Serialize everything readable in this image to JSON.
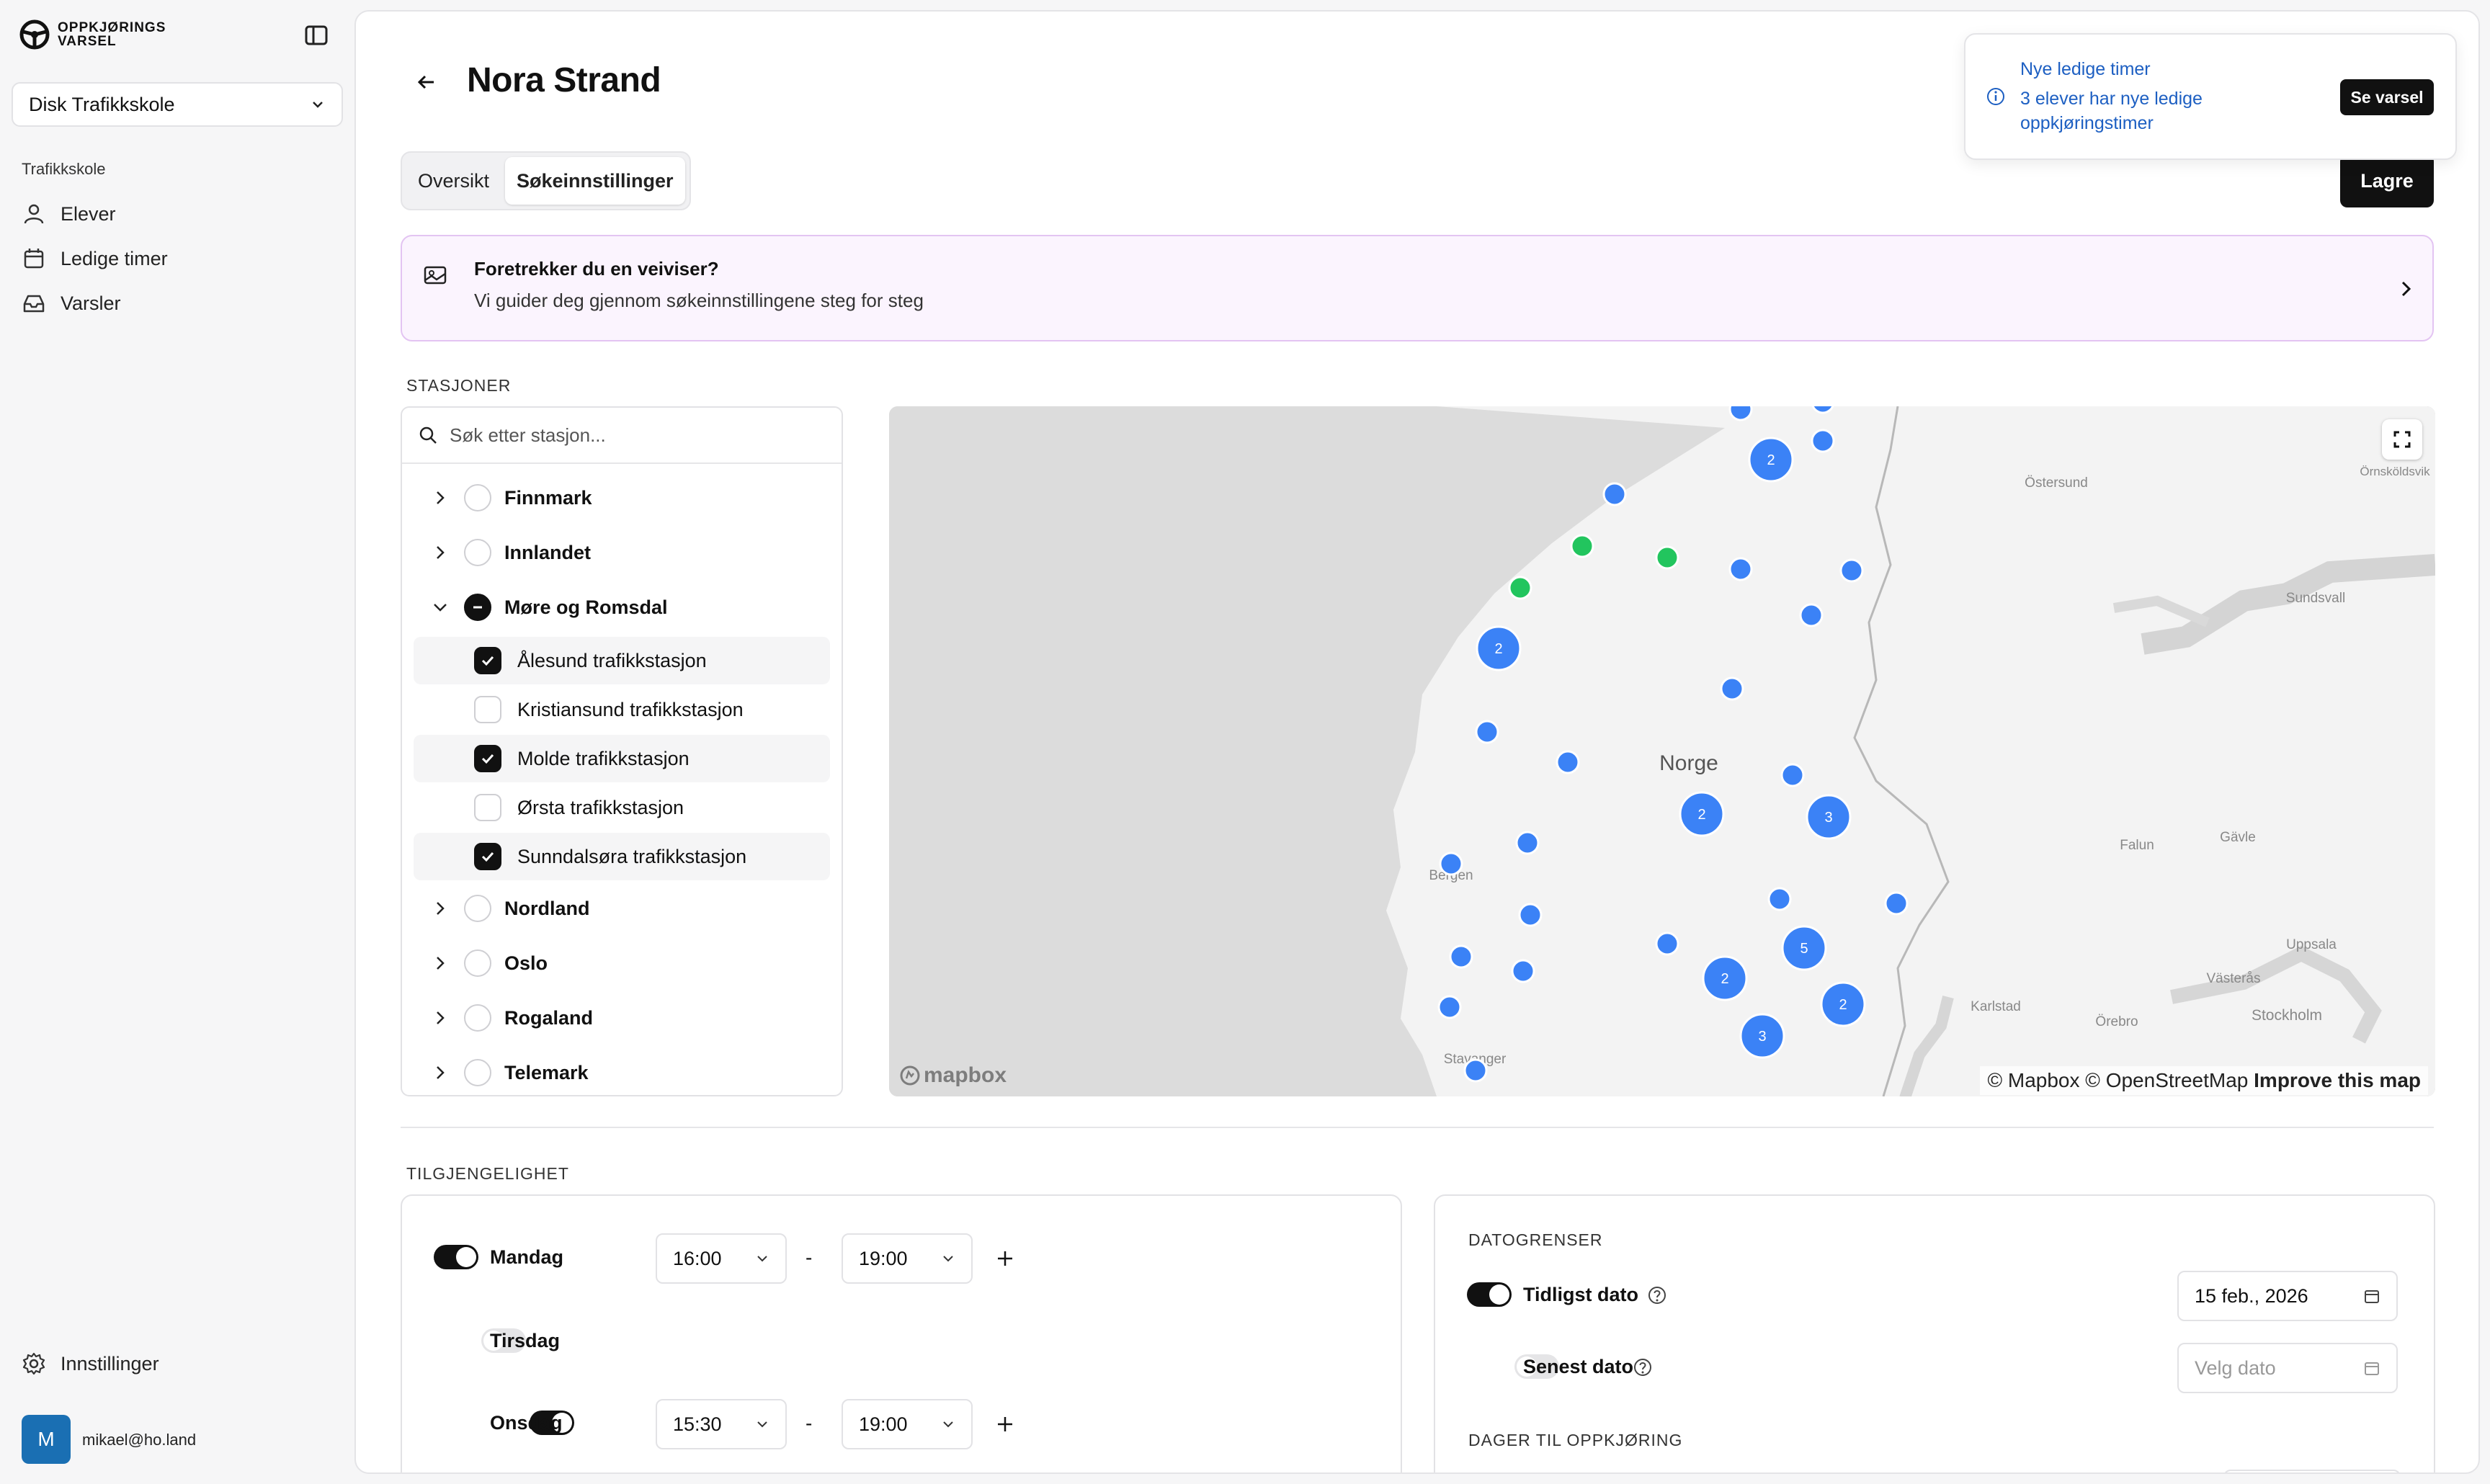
{
  "app": {
    "logo_line1": "OPPKJØRINGS",
    "logo_line2": "VARSEL"
  },
  "sidebar": {
    "school": "Disk Trafikkskole",
    "section": "Trafikkskole",
    "items": [
      {
        "label": "Elever",
        "icon": "user-icon"
      },
      {
        "label": "Ledige timer",
        "icon": "calendar-icon"
      },
      {
        "label": "Varsler",
        "icon": "inbox-icon"
      }
    ],
    "settings": "Innstillinger",
    "user": {
      "initial": "M",
      "email": "mikael@ho.land"
    }
  },
  "header": {
    "title": "Nora Strand",
    "save_label": "Lagre"
  },
  "tabs": [
    {
      "label": "Oversikt",
      "active": false
    },
    {
      "label": "Søkeinnstillinger",
      "active": true
    }
  ],
  "wizard": {
    "title": "Foretrekker du en veiviser?",
    "subtitle": "Vi guider deg gjennom søkeinnstillingene steg for steg"
  },
  "stations": {
    "label": "STASJONER",
    "search_placeholder": "Søk etter stasjon...",
    "regions": [
      {
        "name": "Finnmark",
        "state": "unchecked",
        "expanded": false
      },
      {
        "name": "Innlandet",
        "state": "unchecked",
        "expanded": false
      },
      {
        "name": "Møre og Romsdal",
        "state": "mixed",
        "expanded": true,
        "children": [
          {
            "name": "Ålesund trafikkstasjon",
            "checked": true
          },
          {
            "name": "Kristiansund trafikkstasjon",
            "checked": false
          },
          {
            "name": "Molde trafikkstasjon",
            "checked": true
          },
          {
            "name": "Ørsta trafikkstasjon",
            "checked": false
          },
          {
            "name": "Sunndalsøra trafikkstasjon",
            "checked": true
          }
        ]
      },
      {
        "name": "Nordland",
        "state": "unchecked",
        "expanded": false
      },
      {
        "name": "Oslo",
        "state": "unchecked",
        "expanded": false
      },
      {
        "name": "Rogaland",
        "state": "unchecked",
        "expanded": false
      },
      {
        "name": "Telemark",
        "state": "unchecked",
        "expanded": false
      }
    ]
  },
  "map": {
    "country_label": "Norge",
    "place_labels": [
      "Östersund",
      "Örnsköldsvik",
      "Sundsvall",
      "Falun",
      "Gävle",
      "Uppsala",
      "Västerås",
      "Karlstad",
      "Örebro",
      "Stockholm",
      "Bergen",
      "Stavanger"
    ],
    "attribution": "© Mapbox © OpenStreetMap",
    "improve": "Improve this map",
    "logo": "mapbox",
    "colors": {
      "marker": "#3b82f6",
      "selected": "#22c55e",
      "land": "#f2f2f2",
      "water": "#d9d9d9"
    },
    "cluster_counts": [
      "2",
      "2",
      "2",
      "3",
      "2",
      "5",
      "2",
      "3"
    ]
  },
  "availability": {
    "label": "TILGJENGELIGHET",
    "days": [
      {
        "day": "Mandag",
        "enabled": true,
        "from": "16:00",
        "to": "19:00"
      },
      {
        "day": "Tirsdag",
        "enabled": false
      },
      {
        "day": "Onsdag",
        "enabled": true,
        "from": "15:30",
        "to": "19:00"
      }
    ],
    "separator": "-"
  },
  "date_limits": {
    "label": "DATOGRENSER",
    "earliest": {
      "label": "Tidligst dato",
      "enabled": true,
      "value": "15 feb., 2026"
    },
    "latest": {
      "label": "Senest dato",
      "enabled": false,
      "placeholder": "Velg dato"
    },
    "days_label": "DAGER TIL OPPKJØRING"
  },
  "toast": {
    "title": "Nye ledige timer",
    "body": "3 elever har nye ledige oppkjøringstimer",
    "button": "Se varsel"
  }
}
